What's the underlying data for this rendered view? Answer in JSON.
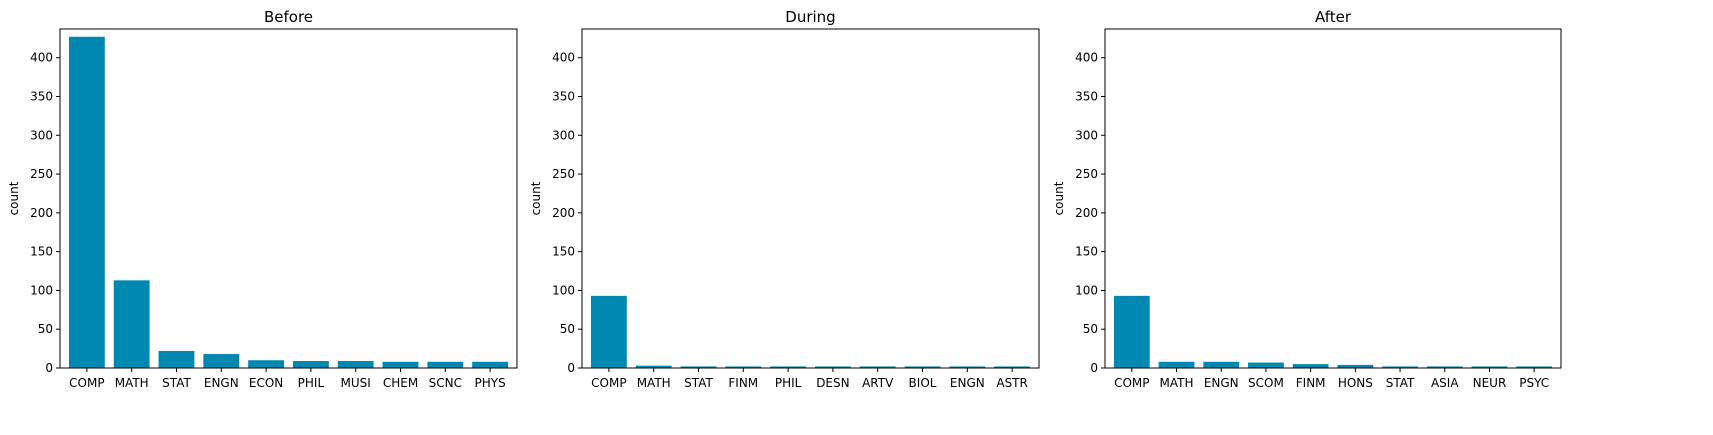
{
  "style": {
    "bar_color": "#0088b0",
    "axis_color": "#000000",
    "grid": false
  },
  "chart_data": [
    {
      "type": "bar",
      "title": "Before",
      "xlabel": "",
      "ylabel": "count",
      "ylim": [
        0,
        437
      ],
      "yticks": [
        0,
        50,
        100,
        150,
        200,
        250,
        300,
        350,
        400
      ],
      "categories": [
        "COMP",
        "MATH",
        "STAT",
        "ENGN",
        "ECON",
        "PHIL",
        "MUSI",
        "CHEM",
        "SCNC",
        "PHYS"
      ],
      "values": [
        427,
        113,
        22,
        18,
        10,
        9,
        9,
        8,
        8,
        8
      ]
    },
    {
      "type": "bar",
      "title": "During",
      "xlabel": "",
      "ylabel": "count",
      "ylim": [
        0,
        437
      ],
      "yticks": [
        0,
        50,
        100,
        150,
        200,
        250,
        300,
        350,
        400
      ],
      "categories": [
        "COMP",
        "MATH",
        "STAT",
        "FINM",
        "PHIL",
        "DESN",
        "ARTV",
        "BIOL",
        "ENGN",
        "ASTR"
      ],
      "values": [
        93,
        3,
        2,
        2,
        2,
        2,
        2,
        2,
        2,
        2
      ]
    },
    {
      "type": "bar",
      "title": "After",
      "xlabel": "",
      "ylabel": "count",
      "ylim": [
        0,
        437
      ],
      "yticks": [
        0,
        50,
        100,
        150,
        200,
        250,
        300,
        350,
        400
      ],
      "categories": [
        "COMP",
        "MATH",
        "ENGN",
        "SCOM",
        "FINM",
        "HONS",
        "STAT",
        "ASIA",
        "NEUR",
        "PSYC"
      ],
      "values": [
        93,
        8,
        8,
        7,
        5,
        4,
        2,
        2,
        2,
        2
      ]
    }
  ]
}
